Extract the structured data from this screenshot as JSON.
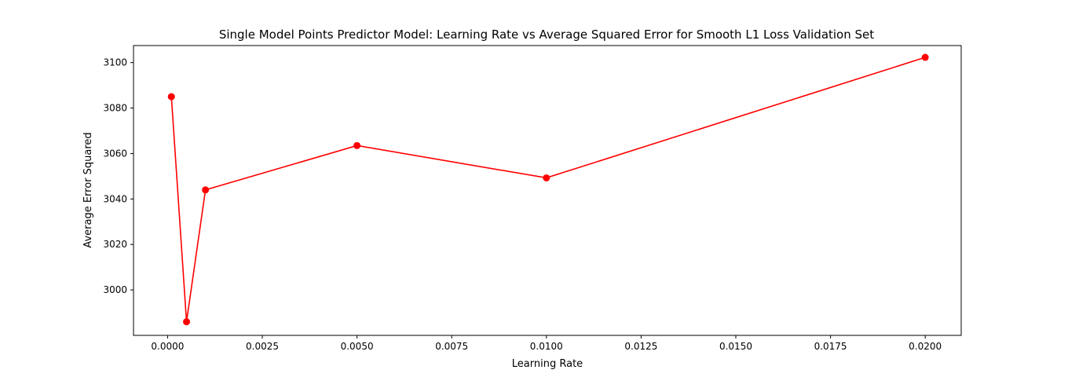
{
  "chart_data": {
    "type": "line",
    "title": "Single Model Points Predictor Model: Learning Rate vs Average Squared Error for Smooth L1 Loss Validation Set",
    "xlabel": "Learning Rate",
    "ylabel": "Average Error Squared",
    "x": [
      0.0001,
      0.0005,
      0.001,
      0.005,
      0.01,
      0.02
    ],
    "series": [
      {
        "values": [
          3085,
          2986,
          3044,
          3063.5,
          3049.3,
          3102.3
        ],
        "color": "#ff0000",
        "marker": "circle"
      }
    ],
    "xlim": [
      -0.0009,
      0.02095
    ],
    "ylim": [
      2980,
      3107.5
    ],
    "xticks": [
      0.0,
      0.0025,
      0.005,
      0.0075,
      0.01,
      0.0125,
      0.015,
      0.0175,
      0.02
    ],
    "xtick_labels": [
      "0.0000",
      "0.0025",
      "0.0050",
      "0.0075",
      "0.0100",
      "0.0125",
      "0.0150",
      "0.0175",
      "0.0200"
    ],
    "yticks": [
      3000,
      3020,
      3040,
      3060,
      3080,
      3100
    ],
    "ytick_labels": [
      "3000",
      "3020",
      "3040",
      "3060",
      "3080",
      "3100"
    ],
    "grid": false,
    "legend": "none"
  }
}
